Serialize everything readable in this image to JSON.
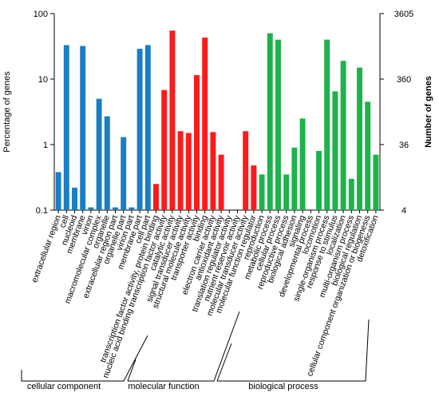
{
  "chart_data": {
    "type": "bar",
    "log_scale": true,
    "ylabel": "Percentage of genes",
    "y2label": "Number of genes",
    "ylim": [
      0.1,
      100
    ],
    "yticks": [
      0.1,
      1,
      10,
      100
    ],
    "y2lim": [
      3.605,
      3605
    ],
    "y2ticks": [
      {
        "value": 3605,
        "label": "3605"
      },
      {
        "value": 360.5,
        "label": "360"
      },
      {
        "value": 36.05,
        "label": "36"
      },
      {
        "value": 3.605,
        "label": "4"
      }
    ],
    "series": [
      {
        "name": "cellular component",
        "color": "#1a7ec3",
        "categories": [
          "extracellular region",
          "cell",
          "nucleoid",
          "membrane",
          "virion",
          "macromolecular complex",
          "organelle",
          "extracellular region part",
          "organelle part",
          "virion part",
          "membrane part",
          "cell part"
        ],
        "values": [
          0.38,
          33,
          0.22,
          32,
          0.11,
          5,
          2.7,
          0.11,
          1.3,
          0.11,
          29,
          33
        ]
      },
      {
        "name": "molecular function",
        "color": "#fc1a1a",
        "categories": [
          "transcription factor activity, protein binding",
          "nucleic acid binding transcription factor activity",
          "catalytic activity",
          "signal transducer activity",
          "structural molecule activity",
          "transporter activity",
          "binding",
          "electron carrier activity",
          "antioxidant activity",
          "translation regulator activity",
          "nutrient reservoir activity",
          "molecular transducer activity",
          "molecular function regulator"
        ],
        "values": [
          0.25,
          6.8,
          55,
          1.6,
          1.5,
          11.5,
          43,
          1.55,
          0.7,
          null,
          null,
          1.6,
          0.48
        ]
      },
      {
        "name": "biological process",
        "color": "#1db34a",
        "categories": [
          "reproduction",
          "metabolic process",
          "cellular process",
          "reproductive process",
          "biological adhesion",
          "signaling",
          "developmental process",
          "locomotion",
          "single-organism process",
          "response to stimulus",
          "localization",
          "multi-organism process",
          "biological regulation",
          "cellular component organization or biogenesis",
          "detoxification"
        ],
        "values": [
          0.35,
          50,
          40,
          0.35,
          0.9,
          2.5,
          null,
          0.8,
          40,
          6.5,
          19,
          0.3,
          15,
          4.5,
          0.7
        ]
      }
    ]
  }
}
